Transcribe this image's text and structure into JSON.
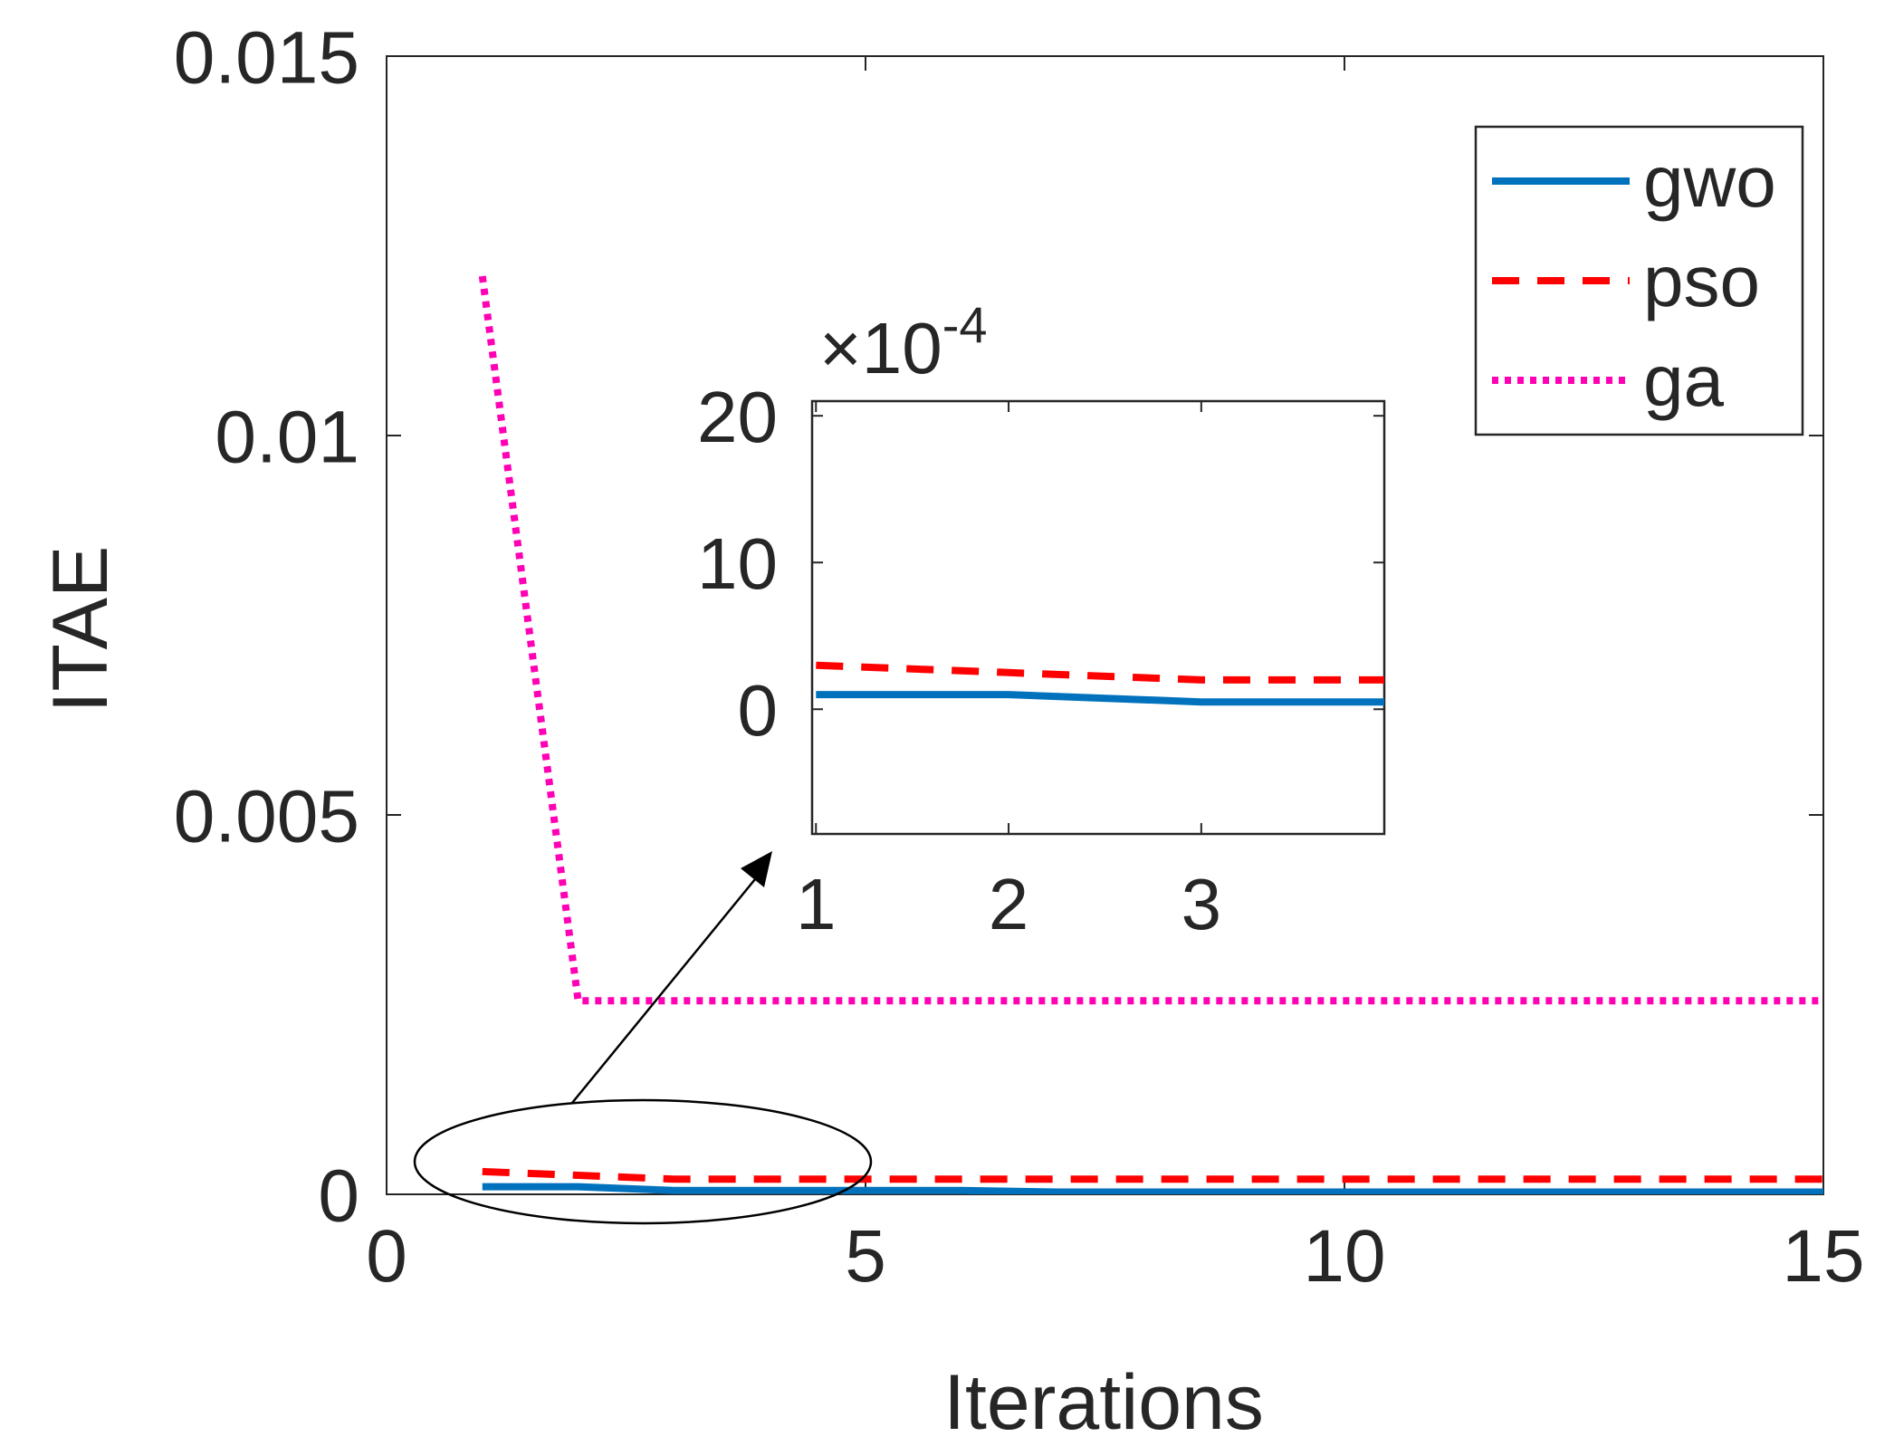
{
  "chart_data": [
    {
      "type": "line",
      "xlabel": "Iterations",
      "ylabel": "ITAE",
      "xlim": [
        0,
        15
      ],
      "ylim": [
        0,
        0.015
      ],
      "xticks": [
        0,
        5,
        10,
        15
      ],
      "xtick_labels": [
        "0",
        "5",
        "10",
        "15"
      ],
      "yticks": [
        0,
        0.005,
        0.01,
        0.015
      ],
      "ytick_labels": [
        "0",
        "0.005",
        "0.01",
        "0.015"
      ],
      "grid": false,
      "legend_position": "top-right",
      "series": [
        {
          "name": "gwo",
          "color": "#0072BD",
          "style": "solid",
          "x": [
            1,
            2,
            3,
            4,
            5,
            6,
            7,
            8,
            9,
            10,
            11,
            12,
            13,
            14,
            15
          ],
          "y": [
            0.0001,
            0.0001,
            5e-05,
            5e-05,
            5e-05,
            5e-05,
            3e-05,
            3e-05,
            3e-05,
            3e-05,
            3e-05,
            3e-05,
            3e-05,
            3e-05,
            3e-05
          ]
        },
        {
          "name": "pso",
          "color": "#FF0000",
          "style": "dashed",
          "x": [
            1,
            2,
            3,
            4,
            5,
            6,
            7,
            8,
            9,
            10,
            11,
            12,
            13,
            14,
            15
          ],
          "y": [
            0.0003,
            0.00025,
            0.0002,
            0.0002,
            0.0002,
            0.0002,
            0.0002,
            0.0002,
            0.0002,
            0.0002,
            0.0002,
            0.0002,
            0.0002,
            0.0002,
            0.0002
          ]
        },
        {
          "name": "ga",
          "color": "#FF00B4",
          "style": "dotted",
          "x": [
            1,
            2,
            3,
            4,
            5,
            6,
            7,
            8,
            9,
            10,
            11,
            12,
            13,
            14,
            15
          ],
          "y": [
            0.0121,
            0.00255,
            0.00255,
            0.00255,
            0.00255,
            0.00255,
            0.00255,
            0.00255,
            0.00255,
            0.00255,
            0.00255,
            0.00255,
            0.00255,
            0.00255,
            0.00255
          ]
        }
      ]
    },
    {
      "type": "line",
      "role": "inset",
      "exponent_label": "×10",
      "exponent_power": "-4",
      "xlim": [
        0.98,
        3.95
      ],
      "ylim": [
        -8.5,
        21
      ],
      "xticks": [
        1,
        2,
        3
      ],
      "xtick_labels": [
        "1",
        "2",
        "3"
      ],
      "yticks": [
        0,
        10,
        20
      ],
      "ytick_labels": [
        "0",
        "10",
        "20"
      ],
      "grid": false,
      "series": [
        {
          "name": "gwo",
          "color": "#0072BD",
          "style": "solid",
          "x": [
            1,
            2,
            3,
            3.95
          ],
          "y": [
            1,
            1,
            0.5,
            0.5
          ]
        },
        {
          "name": "pso",
          "color": "#FF0000",
          "style": "dashed",
          "x": [
            1,
            2,
            3,
            3.95
          ],
          "y": [
            3,
            2.5,
            2,
            2
          ]
        }
      ]
    }
  ]
}
